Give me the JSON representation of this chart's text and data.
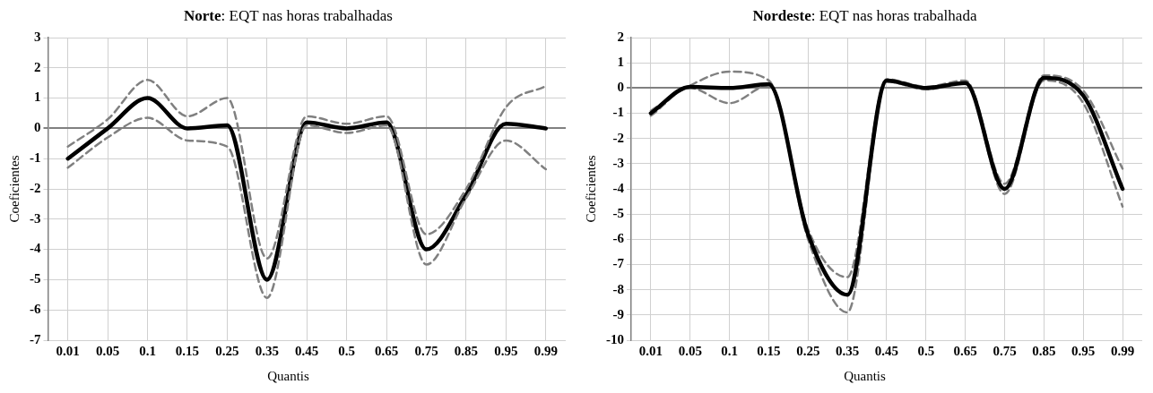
{
  "chart_data": [
    {
      "type": "line",
      "title": "Norte: EQT nas horas trabalhadas",
      "xlabel": "Quantis",
      "ylabel": "Coeficientes",
      "categories": [
        "0.01",
        "0.05",
        "0.1",
        "0.15",
        "0.25",
        "0.35",
        "0.45",
        "0.5",
        "0.65",
        "0.75",
        "0.85",
        "0.95",
        "0.99"
      ],
      "ylim": [
        -7,
        3
      ],
      "yticks": [
        -7,
        -6,
        -5,
        -4,
        -3,
        -2,
        -1,
        0,
        1,
        2,
        3
      ],
      "grid": true,
      "marker": "none",
      "series": [
        {
          "color": "#808080",
          "line_style": "dashed",
          "values": [
            -0.6,
            0.3,
            1.6,
            0.4,
            1.0,
            -4.3,
            0.4,
            0.15,
            0.4,
            -3.5,
            -2.0,
            0.7,
            1.4
          ]
        },
        {
          "color": "#808080",
          "line_style": "dashed",
          "values": [
            -1.3,
            -0.3,
            0.35,
            -0.4,
            -0.6,
            -5.6,
            0.1,
            -0.15,
            0.1,
            -4.5,
            -2.3,
            -0.4,
            -1.35
          ]
        },
        {
          "color": "#000000",
          "line_style": "solid",
          "values": [
            -1,
            0,
            1,
            0,
            0.1,
            -5,
            0.2,
            0,
            0.2,
            -4,
            -2.2,
            0.15,
            0
          ]
        }
      ]
    },
    {
      "type": "line",
      "title": "Nordeste: EQT nas horas trabalhada",
      "xlabel": "Quantis",
      "ylabel": "Coeficientes",
      "categories": [
        "0.01",
        "0.05",
        "0.1",
        "0.15",
        "0.25",
        "0.35",
        "0.45",
        "0.5",
        "0.65",
        "0.75",
        "0.85",
        "0.95",
        "0.99"
      ],
      "ylim": [
        -10,
        2
      ],
      "yticks": [
        -10,
        -9,
        -8,
        -7,
        -6,
        -5,
        -4,
        -3,
        -2,
        -1,
        0,
        1,
        2
      ],
      "grid": true,
      "marker": "none",
      "series": [
        {
          "color": "#000000",
          "line_style": "solid",
          "values": [
            -1,
            0.05,
            0,
            0.15,
            -5.8,
            -8.2,
            0.3,
            0,
            0.2,
            -4,
            0.4,
            -0.3,
            -4
          ]
        },
        {
          "color": "#808080",
          "line_style": "dashed",
          "values": [
            -0.9,
            0.1,
            0.65,
            0.3,
            -5.6,
            -7.5,
            0.35,
            0.05,
            0.3,
            -3.8,
            0.5,
            -0.1,
            -3.2
          ]
        },
        {
          "color": "#808080",
          "line_style": "dashed",
          "values": [
            -1.1,
            0,
            -0.6,
            0.1,
            -6,
            -8.9,
            0.25,
            -0.05,
            0.2,
            -4.2,
            0.3,
            -0.6,
            -4.7
          ]
        }
      ]
    }
  ]
}
